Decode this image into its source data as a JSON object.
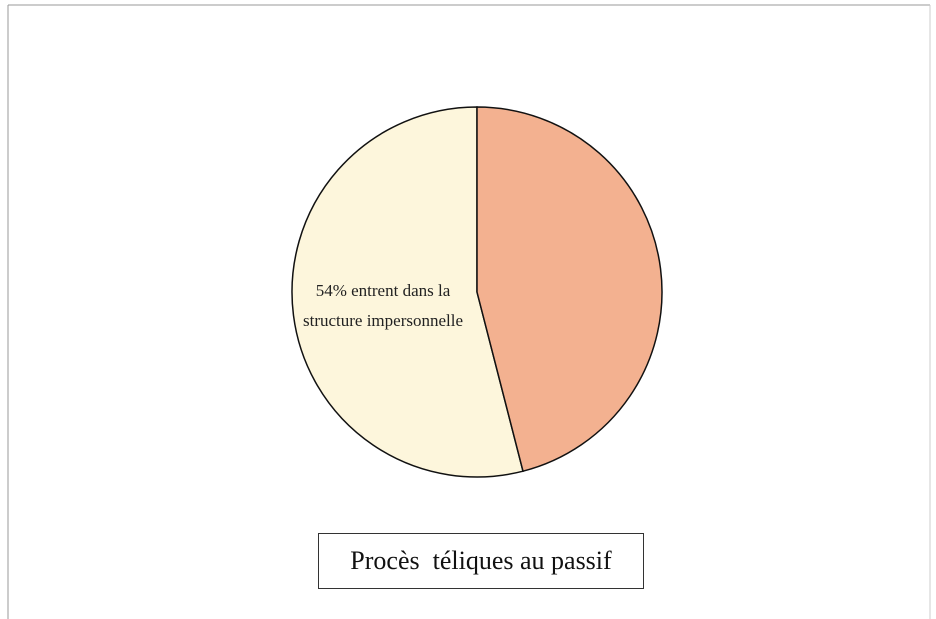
{
  "chart_data": {
    "type": "pie",
    "title": "Procès  téliques au passif",
    "values": [
      54,
      46
    ],
    "value_labels": [
      "54% entrent dans la structure impersonnelle",
      null
    ],
    "colors": [
      "#fdf6dc",
      "#f3b190"
    ]
  }
}
